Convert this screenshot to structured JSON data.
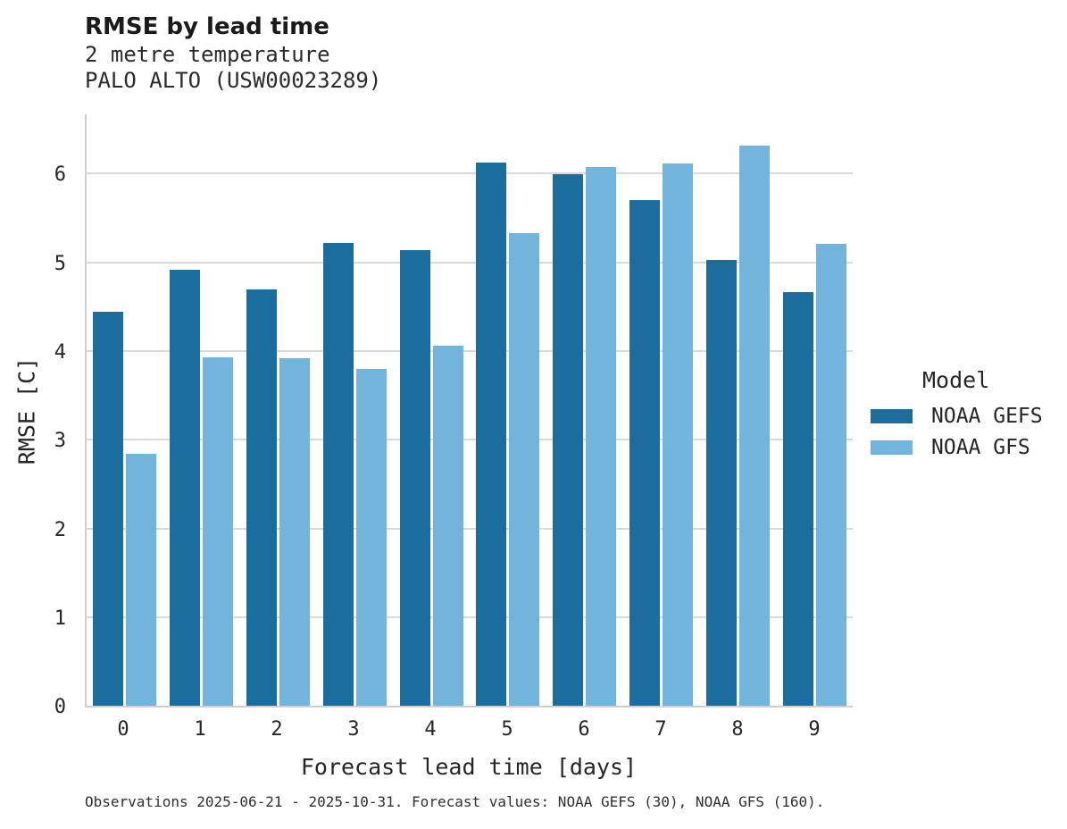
{
  "header": {
    "title": "RMSE by lead time",
    "subtitle_line1": "2 metre temperature",
    "subtitle_line2": "PALO ALTO (USW00023289)"
  },
  "footer": {
    "note": "Observations 2025-06-21 - 2025-10-31. Forecast values: NOAA GEFS (30), NOAA GFS (160)."
  },
  "colors": {
    "gefs_bar": "#1b6d9e",
    "gfs_bar": "#72b4dc",
    "gridline": "#d9d9d9",
    "axis_spine": "#cfcfcf"
  },
  "chart_data": {
    "type": "bar",
    "title": "RMSE by lead time",
    "subtitle": [
      "2 metre temperature",
      "PALO ALTO (USW00023289)"
    ],
    "xlabel": "Forecast lead time [days]",
    "ylabel": "RMSE [C]",
    "categories": [
      "0",
      "1",
      "2",
      "3",
      "4",
      "5",
      "6",
      "7",
      "8",
      "9"
    ],
    "series": [
      {
        "name": "NOAA GEFS",
        "color": "#1b6d9e",
        "values": [
          4.44,
          4.92,
          4.7,
          5.22,
          5.14,
          6.13,
          6.0,
          5.7,
          5.03,
          4.67
        ]
      },
      {
        "name": "NOAA GFS",
        "color": "#72b4dc",
        "values": [
          2.84,
          3.93,
          3.92,
          3.8,
          4.06,
          5.33,
          6.08,
          6.12,
          6.32,
          5.21
        ]
      }
    ],
    "ylim": [
      0,
      6.69
    ],
    "yticks": [
      0,
      1,
      2,
      3,
      4,
      5,
      6
    ],
    "grid": true,
    "legend_title": "Model",
    "legend_position": "right",
    "footnote": "Observations 2025-06-21 - 2025-10-31. Forecast values: NOAA GEFS (30), NOAA GFS (160)."
  }
}
